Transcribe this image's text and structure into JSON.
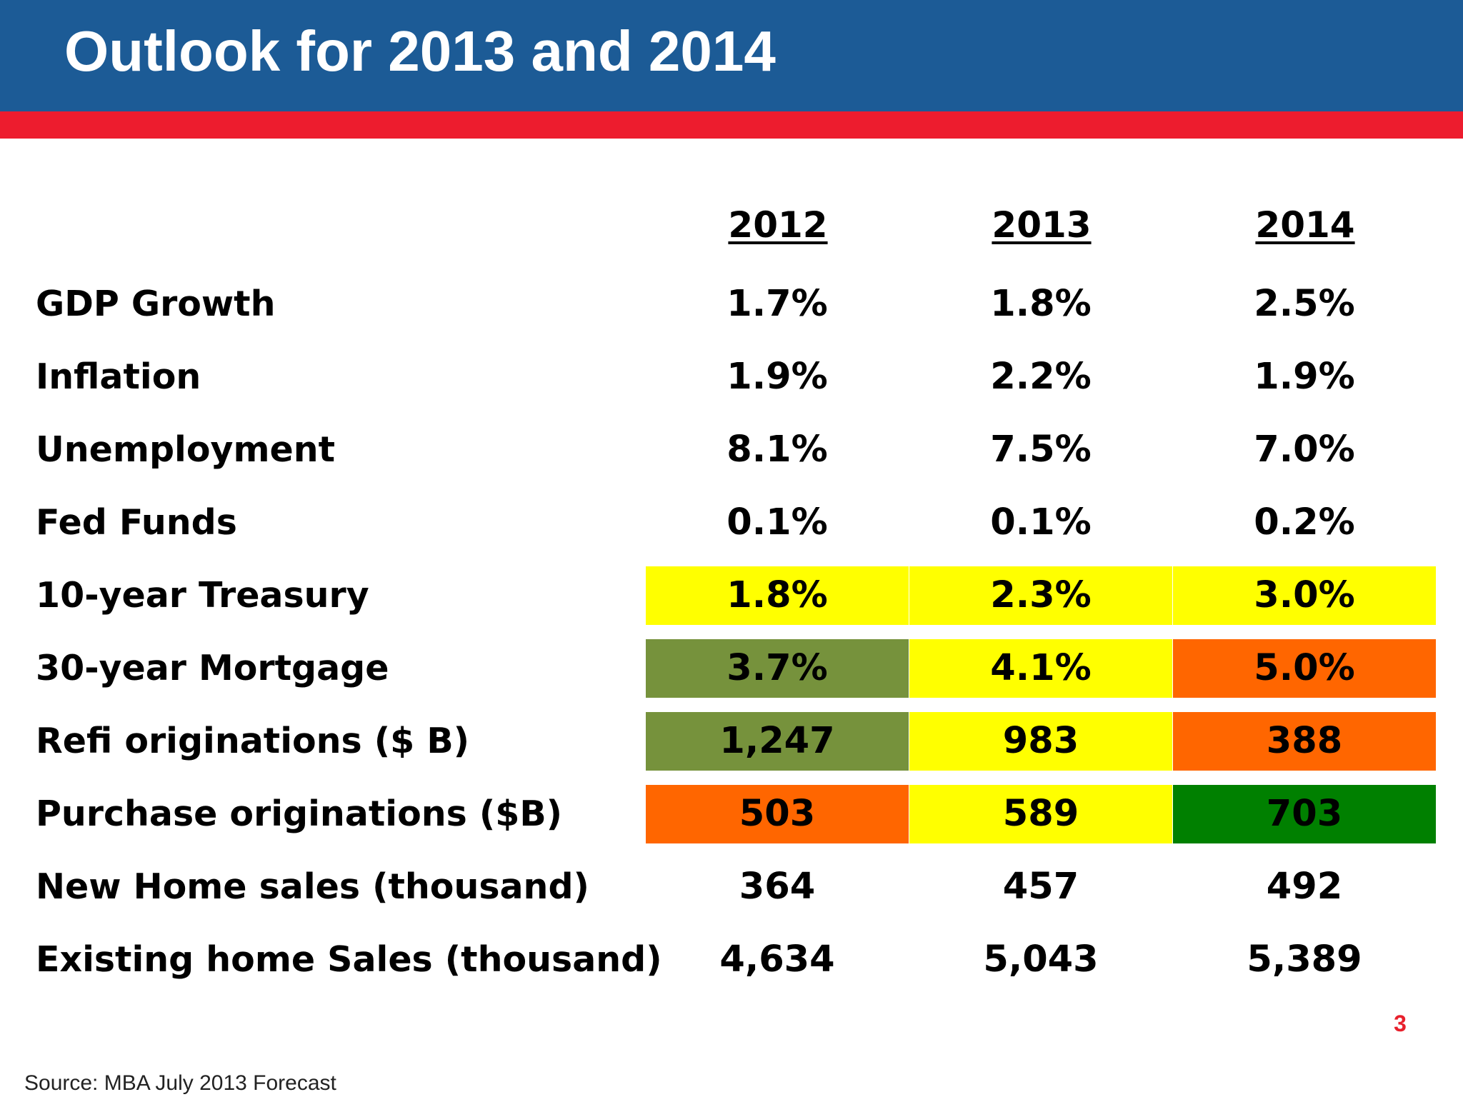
{
  "title": "Outlook for 2013 and 2014",
  "columns": [
    "2012",
    "2013",
    "2014"
  ],
  "rows": [
    {
      "label": "GDP Growth",
      "values": [
        "1.7%",
        "1.8%",
        "2.5%"
      ],
      "colors": [
        null,
        null,
        null
      ]
    },
    {
      "label": "Inflation",
      "values": [
        "1.9%",
        "2.2%",
        "1.9%"
      ],
      "colors": [
        null,
        null,
        null
      ]
    },
    {
      "label": "Unemployment",
      "values": [
        "8.1%",
        "7.5%",
        "7.0%"
      ],
      "colors": [
        null,
        null,
        null
      ]
    },
    {
      "label": "Fed Funds",
      "values": [
        "0.1%",
        "0.1%",
        "0.2%"
      ],
      "colors": [
        null,
        null,
        null
      ]
    },
    {
      "label": "10-year Treasury",
      "values": [
        "1.8%",
        "2.3%",
        "3.0%"
      ],
      "colors": [
        "#ffff00",
        "#ffff00",
        "#ffff00"
      ]
    },
    {
      "label": "30-year Mortgage",
      "values": [
        "3.7%",
        "4.1%",
        "5.0%"
      ],
      "colors": [
        "#76923c",
        "#ffff00",
        "#ff6600"
      ]
    },
    {
      "label": "Refi originations ($ B)",
      "values": [
        "1,247",
        "983",
        "388"
      ],
      "colors": [
        "#76923c",
        "#ffff00",
        "#ff6600"
      ]
    },
    {
      "label": "Purchase originations ($B)",
      "values": [
        "503",
        "589",
        "703"
      ],
      "colors": [
        "#ff6600",
        "#ffff00",
        "#008000"
      ]
    },
    {
      "label": "New Home sales (thousand)",
      "values": [
        "364",
        "457",
        "492"
      ],
      "colors": [
        null,
        null,
        null
      ]
    },
    {
      "label": "Existing home Sales (thousand)",
      "values": [
        "4,634",
        "5,043",
        "5,389"
      ],
      "colors": [
        null,
        null,
        null
      ]
    }
  ],
  "page_number": "3",
  "source": "Source: MBA July 2013 Forecast",
  "theme": {
    "header_color": "#1c5b96",
    "accent_bar_color": "#ed1c2e",
    "page_number_color": "#e8202c"
  }
}
